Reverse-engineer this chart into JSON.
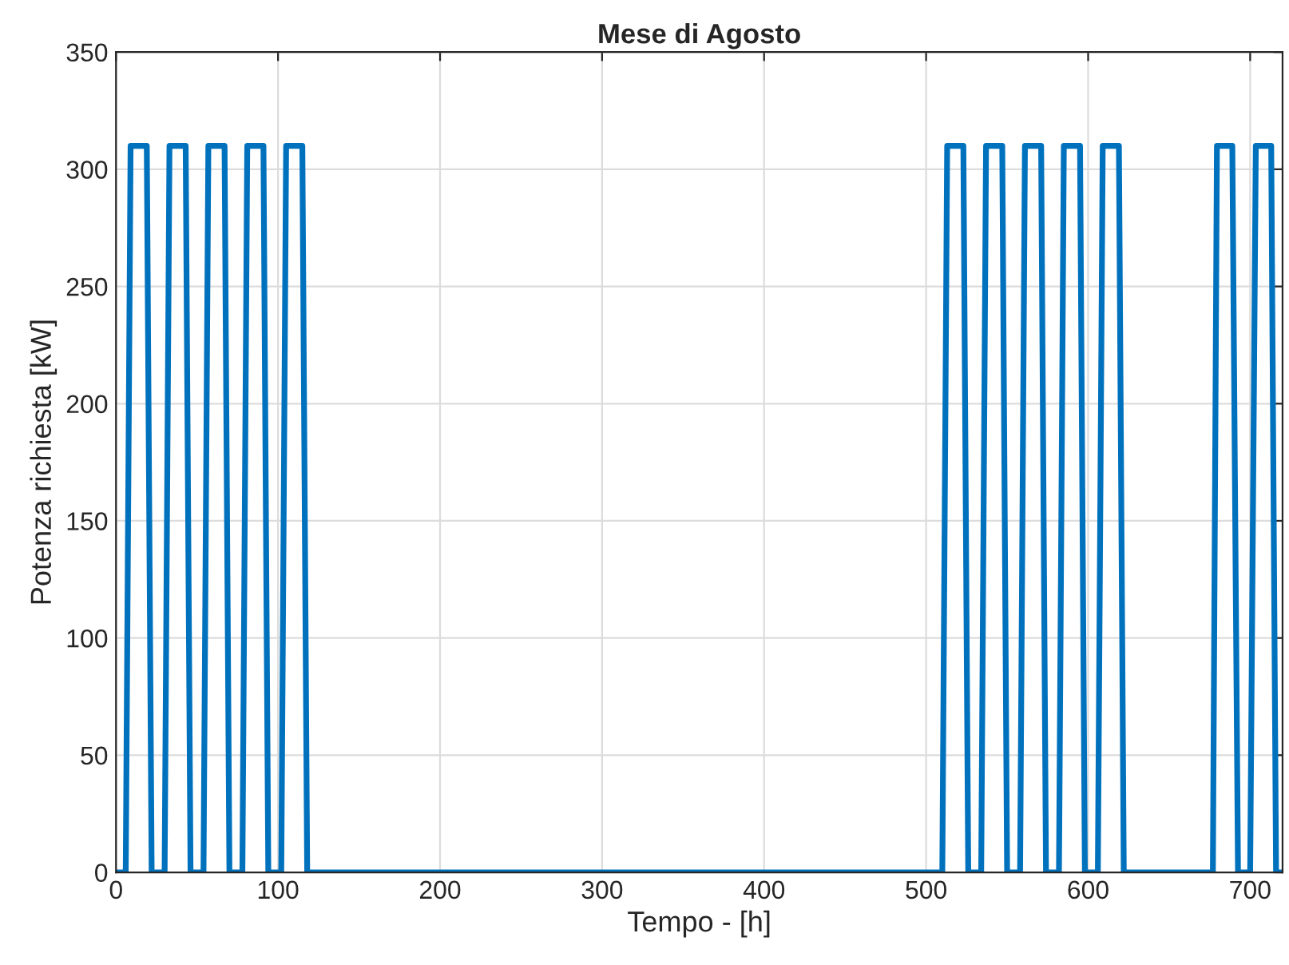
{
  "chart_data": {
    "type": "line",
    "title": "Mese di Agosto",
    "xlabel": "Tempo - [h]",
    "ylabel": "Potenza richiesta [kW]",
    "series": [
      {
        "color": "#0072bd",
        "x": [
          0,
          6,
          9,
          19,
          22,
          30,
          33,
          43,
          46,
          54,
          57,
          67,
          70,
          78,
          81,
          91,
          94,
          102,
          105,
          115,
          118,
          510,
          513,
          523,
          526,
          534,
          537,
          547,
          550,
          558,
          561,
          571,
          574,
          582,
          585,
          595,
          598,
          606,
          609,
          619,
          622,
          677,
          679.5,
          689,
          692.5,
          700,
          703.5,
          713,
          716,
          720
        ],
        "values": [
          0,
          0,
          310,
          310,
          0,
          0,
          310,
          310,
          0,
          0,
          310,
          310,
          0,
          0,
          310,
          310,
          0,
          0,
          310,
          310,
          0,
          0,
          310,
          310,
          0,
          0,
          310,
          310,
          0,
          0,
          310,
          310,
          0,
          0,
          310,
          310,
          0,
          0,
          310,
          310,
          0,
          0,
          310,
          310,
          0,
          0,
          310,
          310,
          0,
          0
        ]
      }
    ],
    "xlim": [
      0,
      720
    ],
    "ylim": [
      0,
      350
    ],
    "xticks": [
      0,
      100,
      200,
      300,
      400,
      500,
      600,
      700
    ],
    "yticks": [
      0,
      50,
      100,
      150,
      200,
      250,
      300,
      350
    ],
    "grid": true,
    "marker": "none",
    "line_style": "solid"
  }
}
